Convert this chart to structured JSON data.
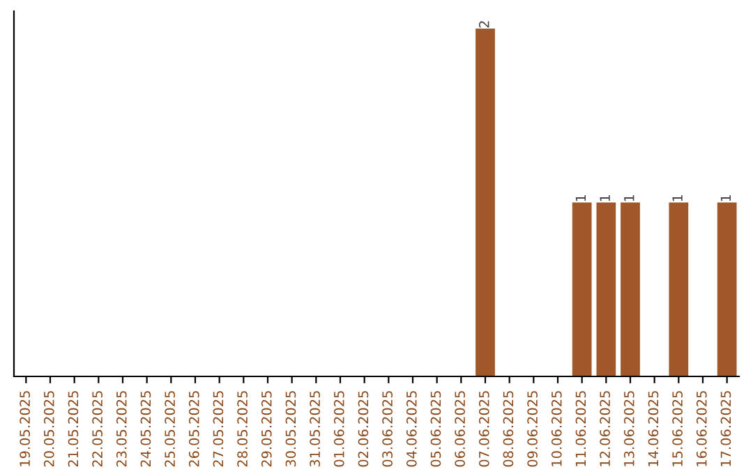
{
  "chart_data": {
    "type": "bar",
    "categories": [
      "19.05.2025",
      "20.05.2025",
      "21.05.2025",
      "22.05.2025",
      "23.05.2025",
      "24.05.2025",
      "25.05.2025",
      "26.05.2025",
      "27.05.2025",
      "28.05.2025",
      "29.05.2025",
      "30.05.2025",
      "31.05.2025",
      "01.06.2025",
      "02.06.2025",
      "03.06.2025",
      "04.06.2025",
      "05.06.2025",
      "06.06.2025",
      "07.06.2025",
      "08.06.2025",
      "09.06.2025",
      "10.06.2025",
      "11.06.2025",
      "12.06.2025",
      "13.06.2025",
      "14.06.2025",
      "15.06.2025",
      "16.06.2025",
      "17.06.2025"
    ],
    "values": [
      null,
      null,
      null,
      null,
      null,
      null,
      null,
      null,
      null,
      null,
      null,
      null,
      null,
      null,
      null,
      null,
      null,
      null,
      null,
      2,
      null,
      null,
      null,
      1,
      1,
      1,
      null,
      1,
      null,
      1
    ],
    "value_labels": [
      null,
      null,
      null,
      null,
      null,
      null,
      null,
      null,
      null,
      null,
      null,
      null,
      null,
      null,
      null,
      null,
      null,
      null,
      null,
      "2",
      null,
      null,
      null,
      "1",
      "1",
      "1",
      null,
      "1",
      null,
      "1"
    ],
    "color": "#a0572a",
    "grid": false,
    "legend": false
  }
}
